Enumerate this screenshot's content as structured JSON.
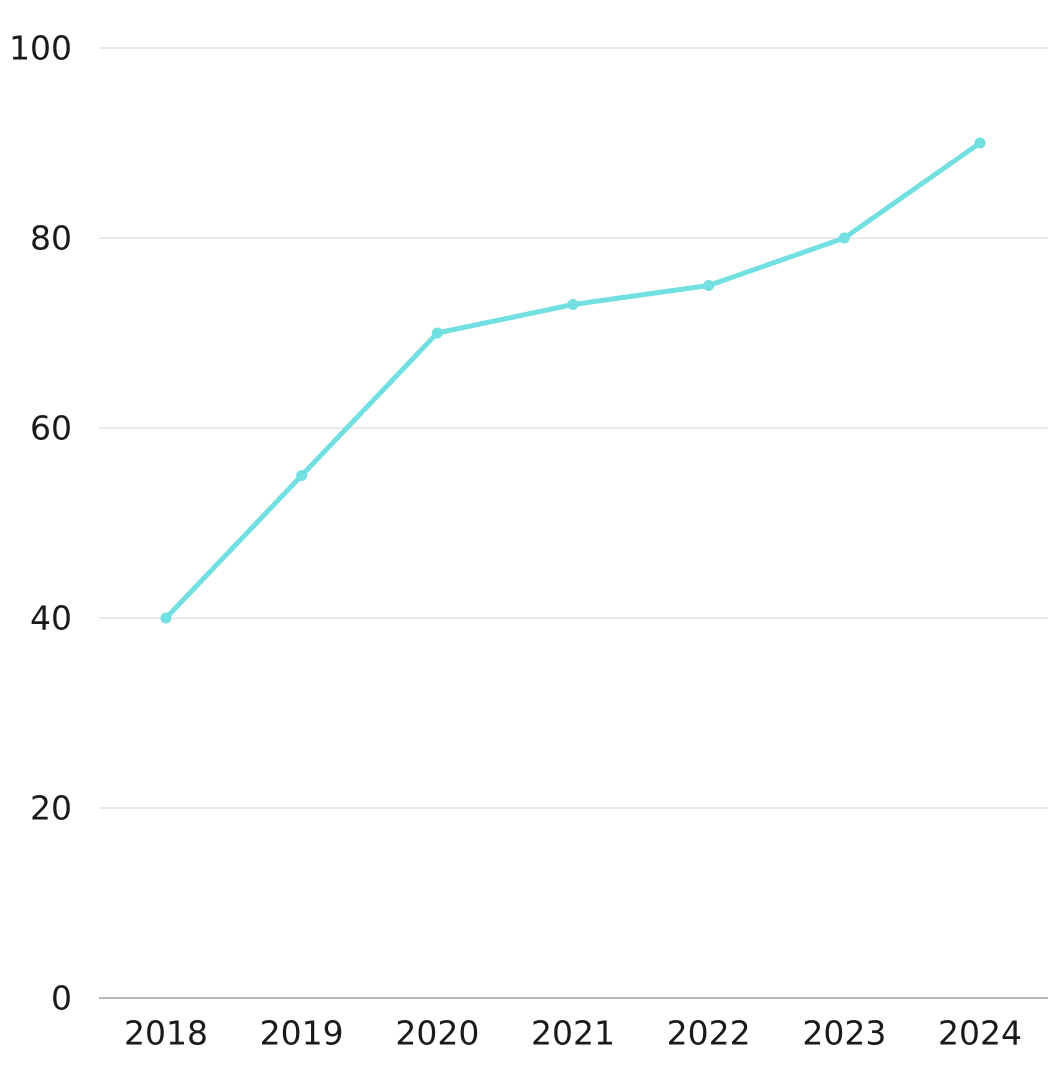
{
  "chart_data": {
    "type": "line",
    "title": "",
    "xlabel": "",
    "ylabel": "",
    "categories": [
      "2018",
      "2019",
      "2020",
      "2021",
      "2022",
      "2023",
      "2024"
    ],
    "series": [
      {
        "values": [
          40,
          55,
          70,
          73,
          75,
          80,
          90
        ]
      }
    ],
    "ylim": [
      0,
      100
    ],
    "yticks": [
      0,
      20,
      40,
      60,
      80,
      100
    ],
    "grid": true,
    "legend": "none",
    "colors": {
      "series": "#72e0e0",
      "grid": "#d4d4d4",
      "axis": "#8c8c8c",
      "text": "#1a1a1a"
    }
  }
}
